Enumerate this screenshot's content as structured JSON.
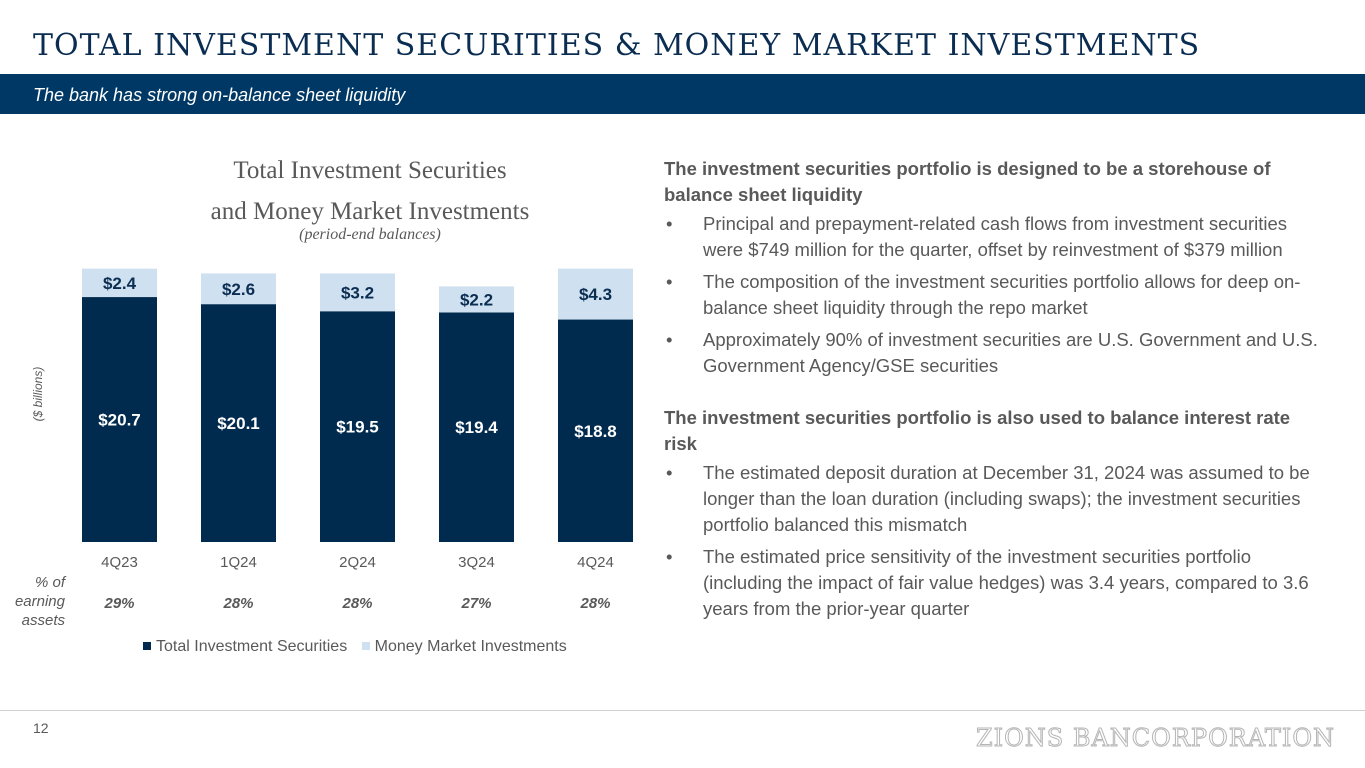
{
  "title": "TOTAL INVESTMENT SECURITIES & MONEY MARKET INVESTMENTS",
  "subtitle": "The bank has strong on-balance sheet liquidity",
  "chart_data": {
    "type": "bar",
    "stacked": true,
    "title_line1": "Total Investment Securities",
    "title_line2": "and Money Market Investments",
    "subtitle": "(period-end balances)",
    "ylabel": "($ billions)",
    "categories": [
      "4Q23",
      "1Q24",
      "2Q24",
      "3Q24",
      "4Q24"
    ],
    "series": [
      {
        "name": "Total Investment Securities",
        "color": "#002a4e",
        "values": [
          20.7,
          20.1,
          19.5,
          19.4,
          18.8
        ],
        "labels": [
          "$20.7",
          "$20.1",
          "$19.5",
          "$19.4",
          "$18.8"
        ]
      },
      {
        "name": "Money Market Investments",
        "color": "#cfe1f0",
        "values": [
          2.4,
          2.6,
          3.2,
          2.2,
          4.3
        ],
        "labels": [
          "$2.4",
          "$2.6",
          "$3.2",
          "$2.2",
          "$4.3"
        ]
      }
    ],
    "ylim": [
      0,
      24
    ],
    "grid": false,
    "legend": "bottom",
    "pct_header": "% of earning assets",
    "pct_values": [
      "29%",
      "28%",
      "28%",
      "27%",
      "28%"
    ]
  },
  "sections": [
    {
      "heading": "The investment securities portfolio is designed to be a storehouse of balance sheet liquidity",
      "bullets": [
        "Principal and prepayment-related cash flows from investment securities were $749 million for the quarter, offset by reinvestment of $379 million",
        "The composition of the investment securities portfolio allows for deep on-balance sheet liquidity through the repo market",
        "Approximately 90% of investment securities are U.S. Government and U.S. Government Agency/GSE securities"
      ]
    },
    {
      "heading": "The investment securities portfolio is also used to balance interest rate risk",
      "bullets": [
        "The estimated deposit duration at December 31, 2024 was assumed to be longer than the loan duration (including swaps); the investment securities portfolio balanced this mismatch",
        "The estimated price sensitivity of the investment securities portfolio (including the impact of fair value hedges) was 3.4 years, compared to 3.6 years from the prior-year quarter"
      ]
    }
  ],
  "bullet_char": "•",
  "page_number": "12",
  "logo_text": "ZIONS BANCORPORATION"
}
